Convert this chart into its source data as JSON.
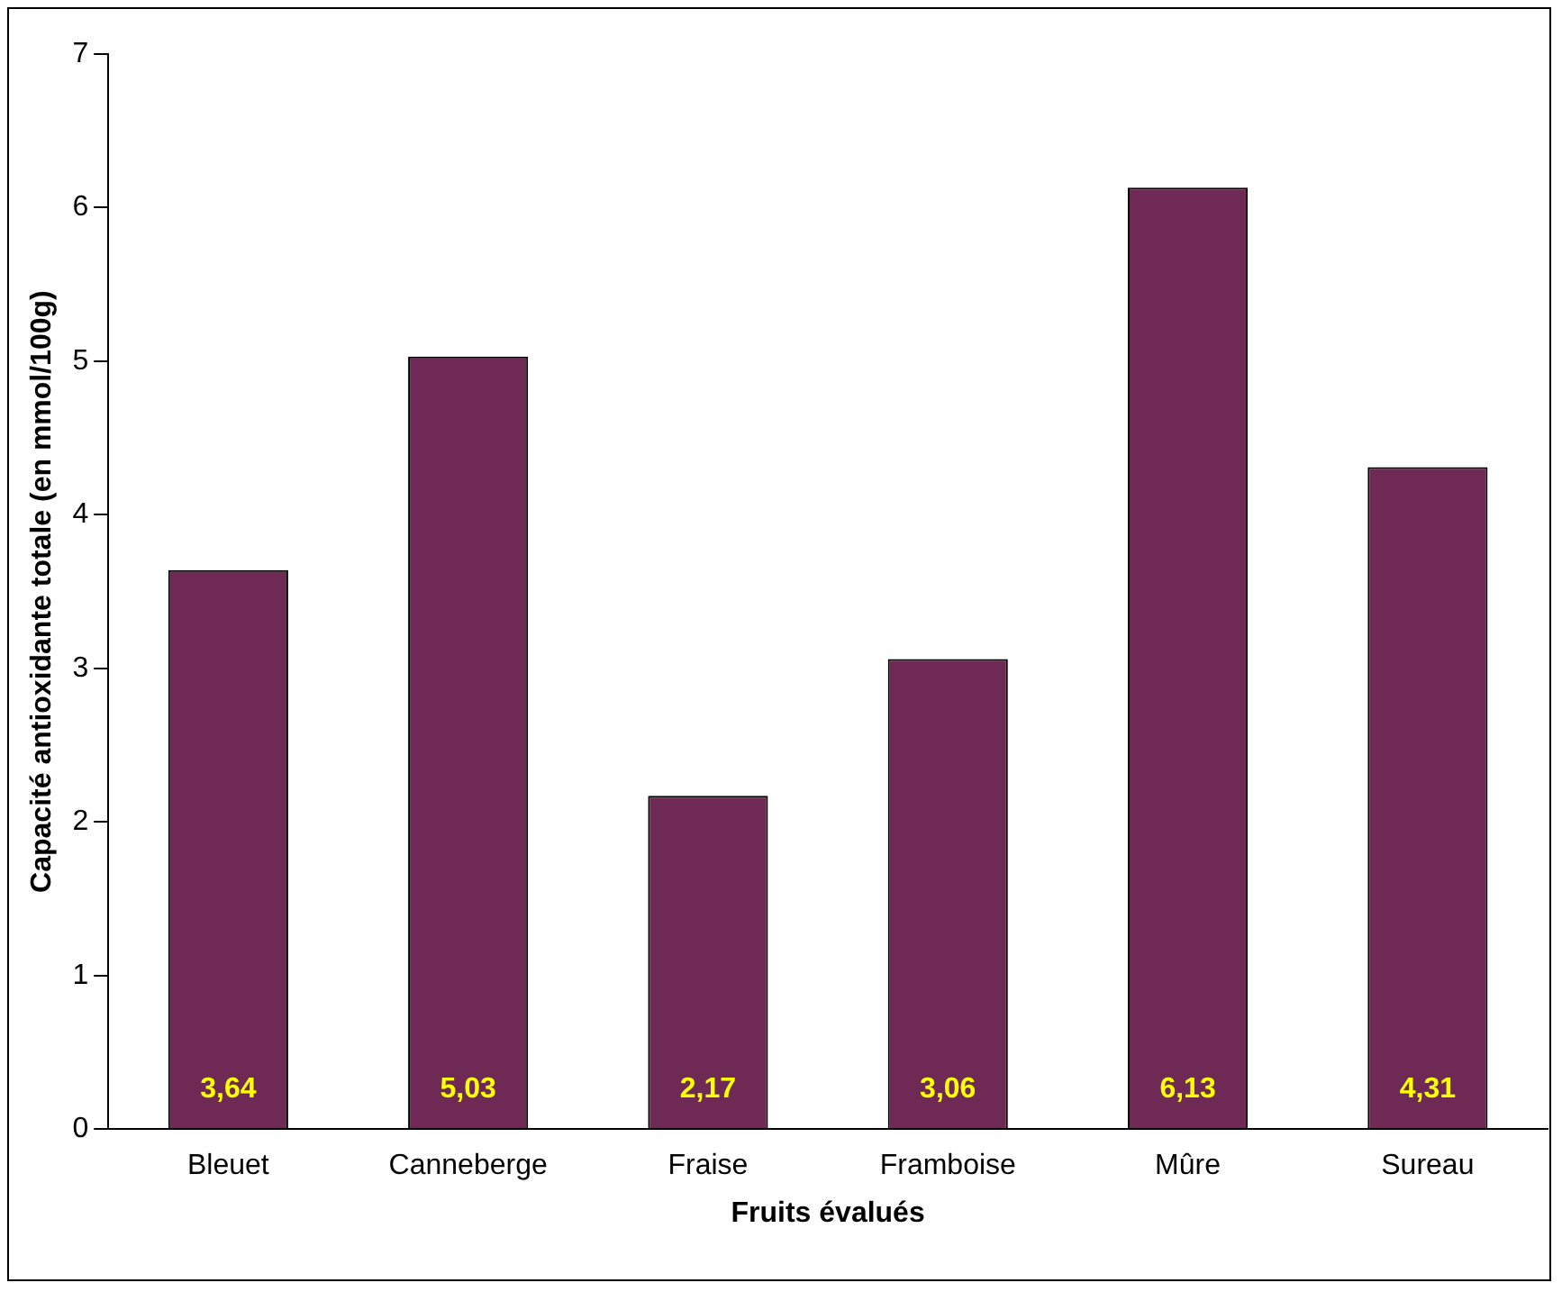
{
  "chart_data": {
    "type": "bar",
    "xlabel": "Fruits évalués",
    "ylabel": "Capacité antioxidante totale (en mmol/100g)",
    "categories": [
      "Bleuet",
      "Canneberge",
      "Fraise",
      "Framboise",
      "Mûre",
      "Sureau"
    ],
    "values": [
      3.64,
      5.03,
      2.17,
      3.06,
      6.13,
      4.31
    ],
    "value_labels": [
      "3,64",
      "5,03",
      "2,17",
      "3,06",
      "6,13",
      "4,31"
    ],
    "color": "#6e2a55",
    "ylim": [
      0,
      7
    ],
    "yticks": [
      0,
      1,
      2,
      3,
      4,
      5,
      6,
      7
    ],
    "grid": false,
    "legend": false
  }
}
